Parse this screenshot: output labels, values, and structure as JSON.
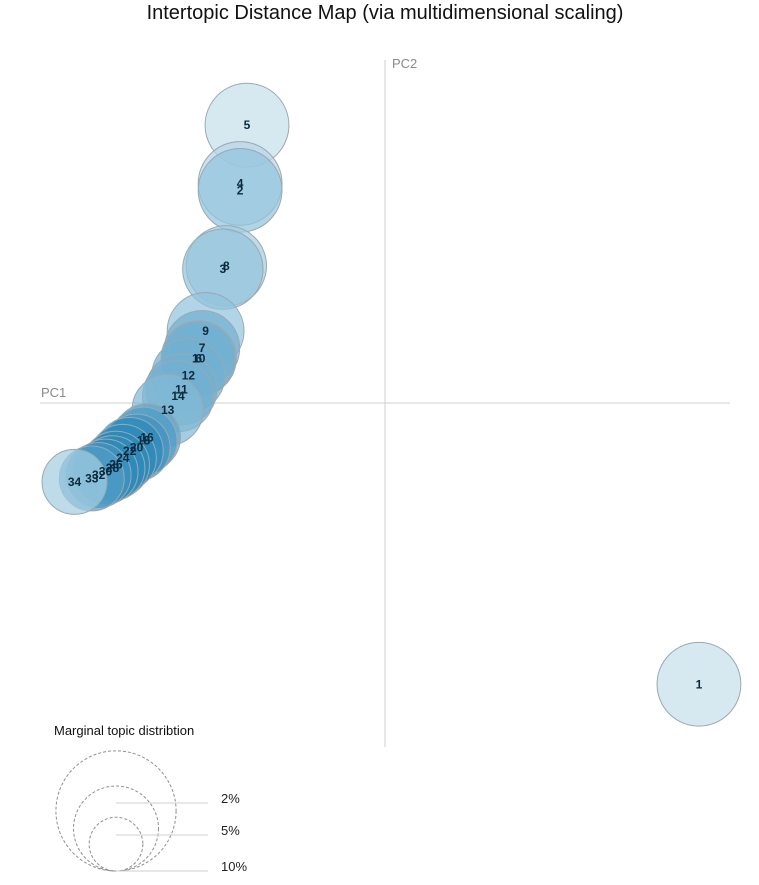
{
  "chart_data": {
    "type": "scatter",
    "title": "Intertopic Distance Map (via multidimensional scaling)",
    "xlabel": "PC1",
    "ylabel": "PC2",
    "xlim": [
      -1,
      1
    ],
    "ylim": [
      -1,
      1
    ],
    "grid": false,
    "size_legend": {
      "title": "Marginal topic distribtion",
      "entries": [
        {
          "label": "2%",
          "value": 2
        },
        {
          "label": "5%",
          "value": 5
        },
        {
          "label": "10%",
          "value": 10
        }
      ]
    },
    "points": [
      {
        "label": "1",
        "x": 0.91,
        "y": -0.82,
        "size": 2.5,
        "shade": 0.0
      },
      {
        "label": "5",
        "x": -0.4,
        "y": 0.81,
        "size": 2.5,
        "shade": 0.0
      },
      {
        "label": "4",
        "x": -0.42,
        "y": 0.64,
        "size": 2.5,
        "shade": 0.1
      },
      {
        "label": "2",
        "x": -0.42,
        "y": 0.62,
        "size": 2.5,
        "shade": 0.3
      },
      {
        "label": "8",
        "x": -0.46,
        "y": 0.4,
        "size": 2.3,
        "shade": 0.2
      },
      {
        "label": "3",
        "x": -0.47,
        "y": 0.39,
        "size": 2.3,
        "shade": 0.3
      },
      {
        "label": "9",
        "x": -0.52,
        "y": 0.21,
        "size": 2.1,
        "shade": 0.3
      },
      {
        "label": "7",
        "x": -0.53,
        "y": 0.16,
        "size": 2.0,
        "shade": 0.5
      },
      {
        "label": "6",
        "x": -0.54,
        "y": 0.13,
        "size": 2.0,
        "shade": 0.5
      },
      {
        "label": "10",
        "x": -0.54,
        "y": 0.13,
        "size": 1.9,
        "shade": 0.5
      },
      {
        "label": "12",
        "x": -0.57,
        "y": 0.08,
        "size": 1.9,
        "shade": 0.5
      },
      {
        "label": "11",
        "x": -0.59,
        "y": 0.04,
        "size": 1.8,
        "shade": 0.5
      },
      {
        "label": "14",
        "x": -0.6,
        "y": 0.02,
        "size": 1.8,
        "shade": 0.5
      },
      {
        "label": "13",
        "x": -0.63,
        "y": -0.02,
        "size": 1.8,
        "shade": 0.4
      },
      {
        "label": "16",
        "x": -0.69,
        "y": -0.1,
        "size": 1.6,
        "shade": 0.6
      },
      {
        "label": "18",
        "x": -0.7,
        "y": -0.11,
        "size": 1.6,
        "shade": 0.7
      },
      {
        "label": "20",
        "x": -0.72,
        "y": -0.13,
        "size": 1.6,
        "shade": 0.8
      },
      {
        "label": "22",
        "x": -0.74,
        "y": -0.14,
        "size": 1.6,
        "shade": 0.9
      },
      {
        "label": "24",
        "x": -0.76,
        "y": -0.16,
        "size": 1.6,
        "shade": 0.9
      },
      {
        "label": "26",
        "x": -0.78,
        "y": -0.18,
        "size": 1.6,
        "shade": 0.9
      },
      {
        "label": "28",
        "x": -0.79,
        "y": -0.19,
        "size": 1.5,
        "shade": 0.9
      },
      {
        "label": "30",
        "x": -0.81,
        "y": -0.2,
        "size": 1.5,
        "shade": 0.9
      },
      {
        "label": "32",
        "x": -0.83,
        "y": -0.21,
        "size": 1.5,
        "shade": 0.8
      },
      {
        "label": "33",
        "x": -0.85,
        "y": -0.22,
        "size": 1.5,
        "shade": 0.7
      },
      {
        "label": "34",
        "x": -0.9,
        "y": -0.23,
        "size": 1.5,
        "shade": 0.2
      }
    ]
  }
}
